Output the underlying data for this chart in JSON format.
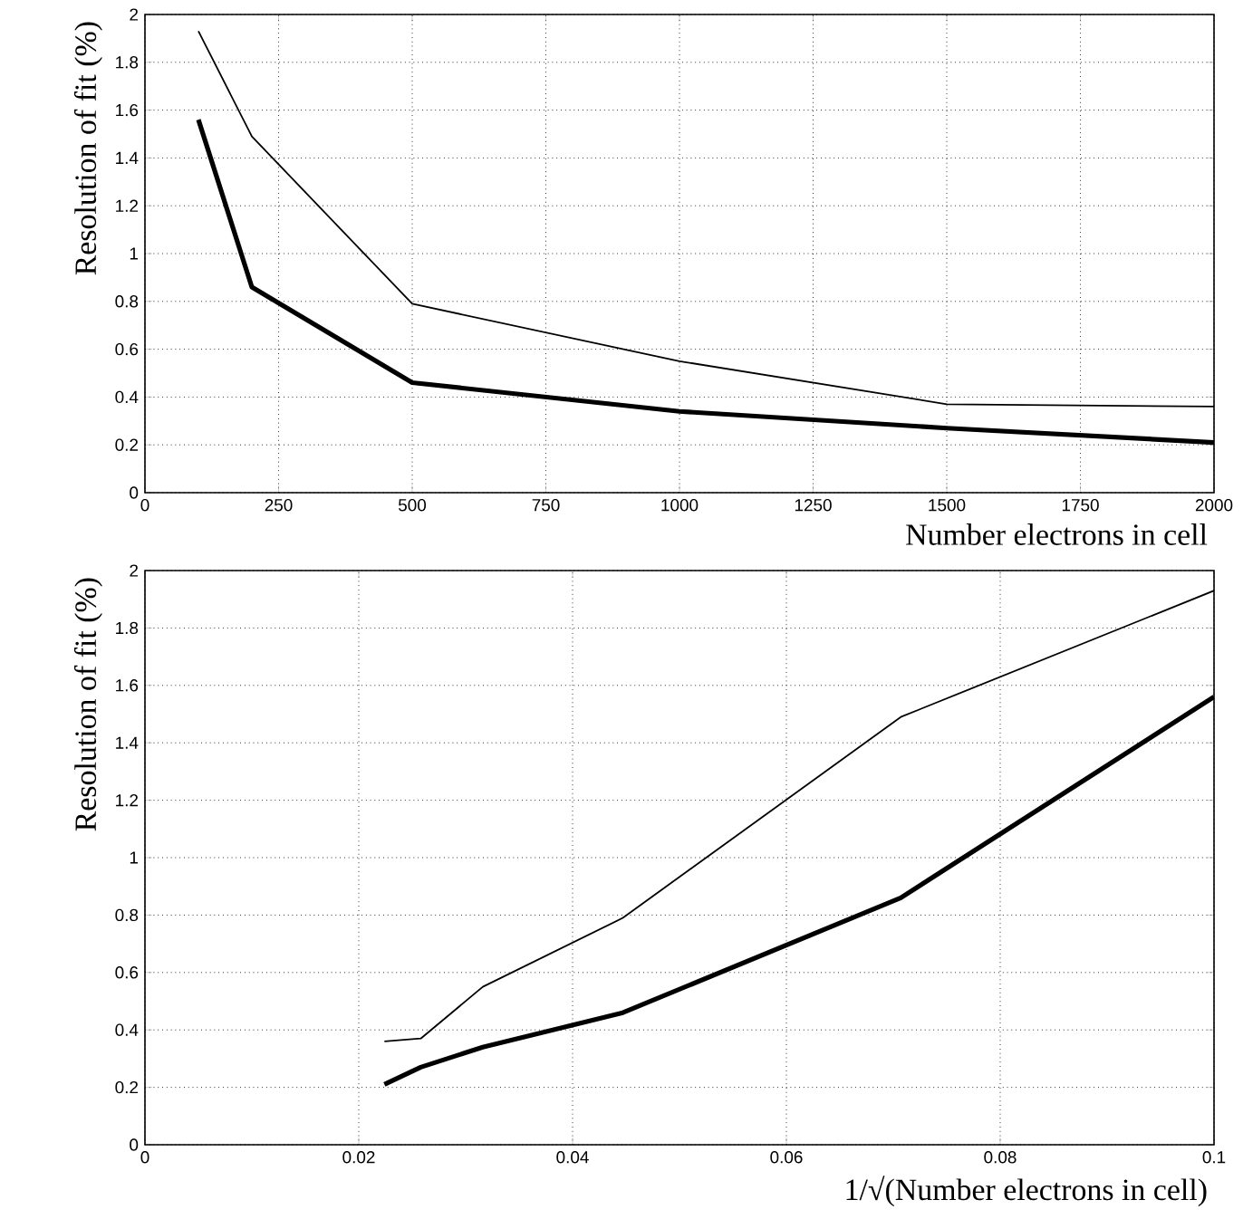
{
  "chart_data": [
    {
      "type": "line",
      "xlabel": "Number electrons in cell",
      "ylabel": "Resolution of fit (%)",
      "x": [
        100,
        200,
        500,
        1000,
        1500,
        2000
      ],
      "series": [
        {
          "color": "#000000",
          "values": [
            1.93,
            1.49,
            0.79,
            0.55,
            0.37,
            0.36
          ]
        },
        {
          "color": "#000000",
          "values": [
            1.56,
            0.86,
            0.46,
            0.34,
            0.27,
            0.21
          ]
        }
      ],
      "xlim": [
        0,
        2000
      ],
      "xticks": [
        0,
        250,
        500,
        750,
        1000,
        1250,
        1500,
        1750,
        2000
      ],
      "ylim": [
        0,
        2
      ],
      "yticks": [
        0,
        0.2,
        0.4,
        0.6,
        0.8,
        1,
        1.2,
        1.4,
        1.6,
        1.8,
        2
      ],
      "grid": true
    },
    {
      "type": "line",
      "xlabel": "1/√(Number electrons in cell)",
      "ylabel": "Resolution of fit (%)",
      "x": [
        0.1,
        0.0707,
        0.0447,
        0.0316,
        0.0258,
        0.0224
      ],
      "series": [
        {
          "color": "#000000",
          "values": [
            1.93,
            1.49,
            0.79,
            0.55,
            0.37,
            0.36
          ]
        },
        {
          "color": "#000000",
          "values": [
            1.56,
            0.86,
            0.46,
            0.34,
            0.27,
            0.21
          ]
        }
      ],
      "xlim": [
        0,
        0.1
      ],
      "xticks": [
        0,
        0.02,
        0.04,
        0.06,
        0.08,
        0.1
      ],
      "ylim": [
        0,
        2
      ],
      "yticks": [
        0,
        0.2,
        0.4,
        0.6,
        0.8,
        1,
        1.2,
        1.4,
        1.6,
        1.8,
        2
      ],
      "grid": true
    }
  ]
}
